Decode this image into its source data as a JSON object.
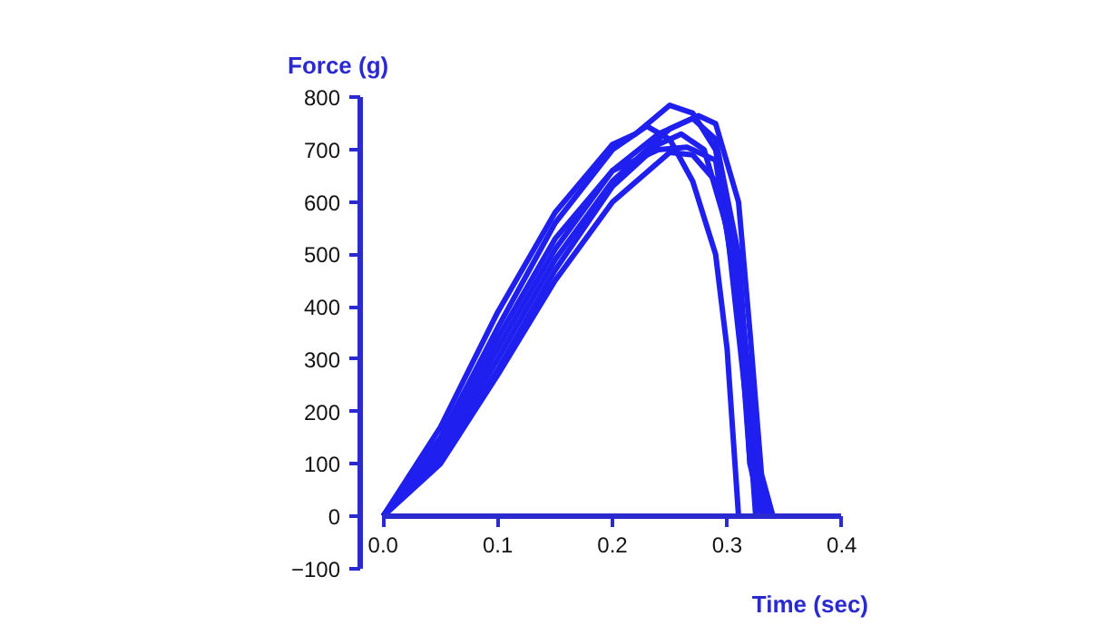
{
  "chart_data": {
    "type": "line",
    "xlabel": "Time (sec)",
    "ylabel": "Force (g)",
    "xlim": [
      0,
      0.4
    ],
    "ylim": [
      -100,
      800
    ],
    "xticks": [
      {
        "value": 0,
        "label": "0.0"
      },
      0.1,
      0.2,
      0.3,
      0.4
    ],
    "yticks": [
      -100,
      0,
      100,
      200,
      300,
      400,
      500,
      600,
      700,
      800
    ],
    "line_style": "solid",
    "marker": "none",
    "series": [
      {
        "color": "#1f1fef",
        "x": [
          0,
          0.05,
          0.1,
          0.15,
          0.2,
          0.22,
          0.25,
          0.27,
          0.29,
          0.31,
          0.32,
          0.33
        ],
        "values": [
          0,
          170,
          390,
          580,
          710,
          730,
          785,
          770,
          700,
          450,
          100,
          0
        ]
      },
      {
        "color": "#1f1fef",
        "x": [
          0,
          0.05,
          0.1,
          0.15,
          0.2,
          0.23,
          0.25,
          0.27,
          0.29,
          0.3,
          0.31
        ],
        "values": [
          0,
          150,
          360,
          560,
          700,
          745,
          720,
          640,
          500,
          320,
          0
        ]
      },
      {
        "color": "#1f1fef",
        "x": [
          0,
          0.05,
          0.1,
          0.15,
          0.2,
          0.25,
          0.275,
          0.29,
          0.31,
          0.32,
          0.33,
          0.34
        ],
        "values": [
          0,
          120,
          300,
          490,
          640,
          740,
          765,
          750,
          600,
          350,
          80,
          0
        ]
      },
      {
        "color": "#1f1fef",
        "x": [
          0,
          0.05,
          0.1,
          0.15,
          0.2,
          0.24,
          0.27,
          0.29,
          0.31,
          0.32,
          0.33
        ],
        "values": [
          0,
          130,
          320,
          510,
          660,
          730,
          760,
          720,
          500,
          200,
          0
        ]
      },
      {
        "color": "#1f1fef",
        "x": [
          0,
          0.05,
          0.1,
          0.15,
          0.2,
          0.24,
          0.26,
          0.28,
          0.3,
          0.32,
          0.325
        ],
        "values": [
          0,
          110,
          280,
          470,
          630,
          710,
          730,
          700,
          550,
          150,
          0
        ]
      },
      {
        "color": "#1f1fef",
        "x": [
          0,
          0.05,
          0.1,
          0.15,
          0.2,
          0.24,
          0.265,
          0.29,
          0.31,
          0.32,
          0.335
        ],
        "values": [
          0,
          140,
          340,
          530,
          660,
          700,
          705,
          680,
          400,
          100,
          0
        ]
      },
      {
        "color": "#1f1fef",
        "x": [
          0,
          0.05,
          0.1,
          0.15,
          0.2,
          0.25,
          0.27,
          0.29,
          0.31,
          0.32,
          0.33,
          0.34
        ],
        "values": [
          0,
          100,
          270,
          450,
          600,
          695,
          690,
          640,
          450,
          250,
          50,
          0
        ]
      }
    ]
  }
}
